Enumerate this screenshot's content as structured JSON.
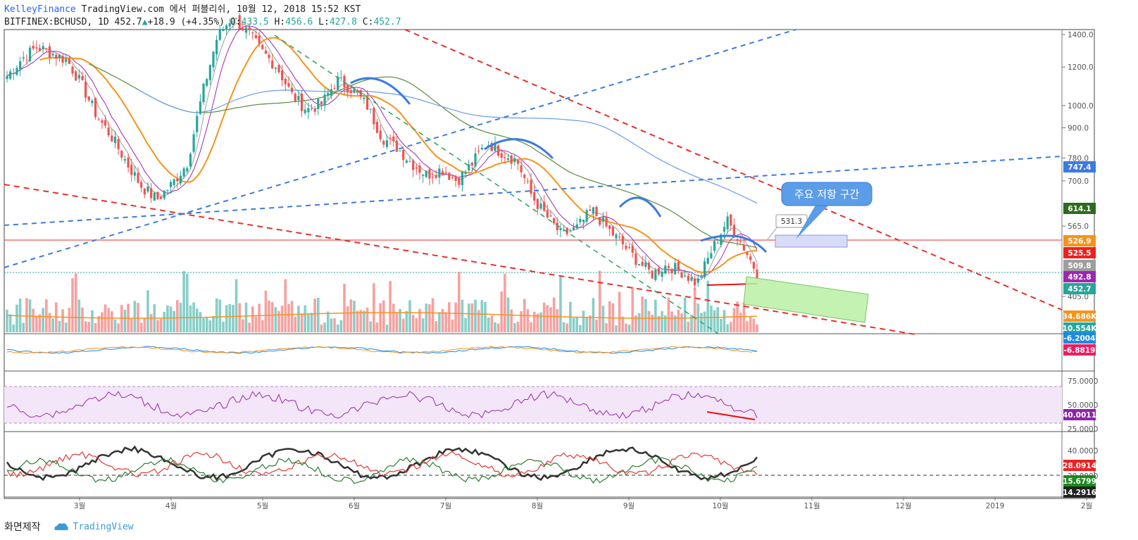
{
  "header": {
    "brand": "KelleyFinance",
    "published": "TradingView.com 에서 퍼블리쉬, 10월 12, 2018 15:52 KST",
    "symbol": "BITFINEX:BCHUSD, 1D",
    "last": "452.7",
    "change": "+18.9 (+4.35%)",
    "o_label": "O:",
    "o": "433.5",
    "h_label": "H:",
    "h": "456.6",
    "l_label": "L:",
    "l": "427.8",
    "c_label": "C:",
    "c": "452.7"
  },
  "footer": {
    "credit": "화면제작",
    "logo": "TradingView"
  },
  "annotations": {
    "resistance_callout": "주요 저항 구간",
    "price_box": "531.3"
  },
  "colors": {
    "up": "#26a69a",
    "down": "#ef5350",
    "ma_orange": "#f7931a",
    "ma_green": "#5b8a3c",
    "ma_blue": "#6a9be8",
    "trend_red": "#e8302a",
    "trend_blue": "#3b7be0",
    "rsi_band": "#f3e6f8",
    "rsi_line": "#9c27b0"
  },
  "chart_data": [
    {
      "type": "candlestick",
      "panel": "price",
      "symbol": "BITFINEX:BCHUSD",
      "interval": "1D",
      "x_ticks": [
        "3월",
        "4월",
        "5월",
        "6월",
        "7월",
        "8월",
        "9월",
        "10월",
        "11월",
        "12월",
        "2019",
        "2월"
      ],
      "y_ticks": [
        "1400.0",
        "1200.0",
        "1000.0",
        "900.0",
        "780.0",
        "700.0",
        "565.0",
        "405.0"
      ],
      "price_tags": [
        {
          "label": "747.4",
          "color": "#3b7be0"
        },
        {
          "label": "614.1",
          "color": "#2e6b1f"
        },
        {
          "label": "526.9",
          "color": "#f7931a"
        },
        {
          "label": "525.5",
          "color": "#ef2020"
        },
        {
          "label": "509.8",
          "color": "#9e9e9e"
        },
        {
          "label": "492.8",
          "color": "#9c27b0"
        },
        {
          "label": "452.7",
          "color": "#26a69a"
        },
        {
          "label": "34.686K",
          "color": "#f7931a"
        },
        {
          "label": "10.554K",
          "color": "#26a69a"
        }
      ],
      "approx_close_path": [
        1150,
        1250,
        1320,
        1280,
        1240,
        1100,
        950,
        860,
        760,
        680,
        640,
        690,
        760,
        1050,
        1380,
        1520,
        1420,
        1290,
        1200,
        1050,
        980,
        1010,
        1130,
        1080,
        1000,
        860,
        820,
        760,
        720,
        740,
        700,
        760,
        840,
        800,
        770,
        650,
        590,
        540,
        560,
        610,
        560,
        520,
        480,
        450,
        470,
        455,
        430,
        505,
        580,
        520,
        452.7
      ],
      "volume_ma_level": "34.686K",
      "last_volume": "10.554K"
    },
    {
      "type": "line",
      "panel": "macd",
      "series": [
        {
          "name": "",
          "last": "-6.2004"
        },
        {
          "name": "",
          "last": "-6.8819"
        }
      ]
    },
    {
      "type": "line",
      "panel": "rsi",
      "y_ticks": [
        "75.0000",
        "50.0000",
        "25.0000"
      ],
      "last": "40.0011"
    },
    {
      "type": "line",
      "panel": "dmi",
      "y_ticks": [
        "40.0000",
        "20.0000"
      ],
      "tags": [
        {
          "label": "28.0914",
          "color": "#ef2020"
        },
        {
          "label": "15.6799",
          "color": "#1b8a1b"
        },
        {
          "label": "14.2916",
          "color": "#222222"
        }
      ]
    }
  ]
}
